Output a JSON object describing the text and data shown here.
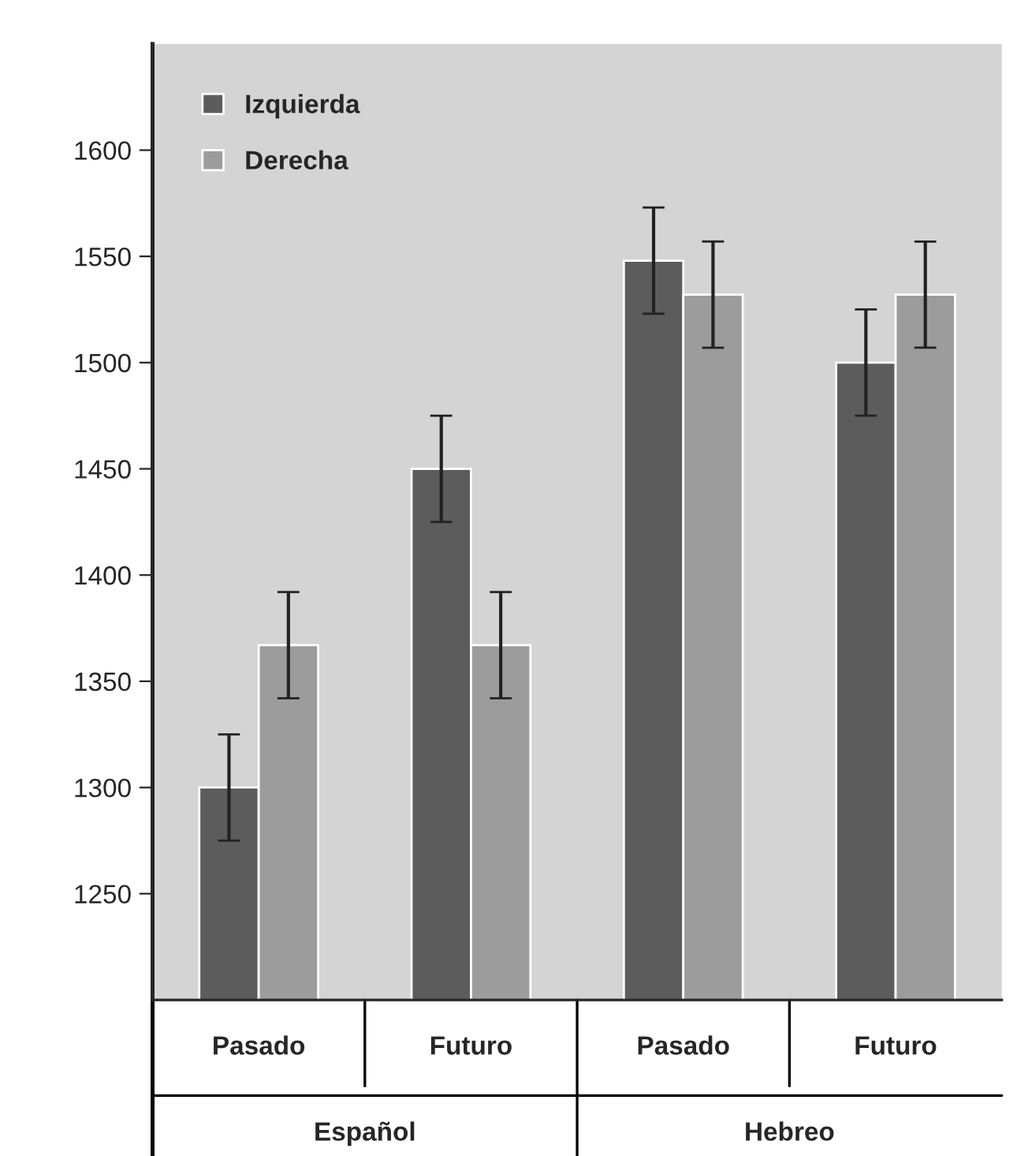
{
  "chart_data": {
    "type": "bar",
    "categories": [
      "Pasado",
      "Futuro",
      "Pasado",
      "Futuro"
    ],
    "series": [
      {
        "name": "Izquierda",
        "color": "#5c5c5c",
        "values": [
          1300,
          1450,
          1548,
          1500
        ],
        "errors": [
          25,
          25,
          25,
          25
        ]
      },
      {
        "name": "Derecha",
        "color": "#9c9c9c",
        "values": [
          1367,
          1367,
          1532,
          1532
        ],
        "errors": [
          25,
          25,
          25,
          25
        ]
      }
    ],
    "annotations": [
      "Español",
      "Hebreo"
    ],
    "ylim": [
      1200,
      1650
    ],
    "yticks": [
      1250,
      1300,
      1350,
      1400,
      1450,
      1500,
      1550,
      1600
    ],
    "grid": false,
    "legend": "top left"
  }
}
